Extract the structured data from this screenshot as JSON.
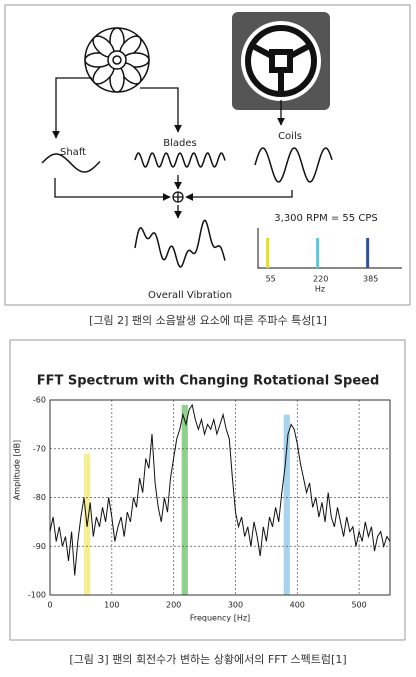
{
  "figure1": {
    "labels": {
      "shaft": "Shaft",
      "blades": "Blades",
      "coils": "Coils",
      "overall": "Overall Vibration",
      "rpm": "3,300 RPM = 55 CPS"
    },
    "spectrum": {
      "ticks": [
        55,
        220,
        385
      ],
      "colors": [
        "#e6df1e",
        "#5cc6de",
        "#2f4f9f"
      ],
      "axis_label": "Hz"
    }
  },
  "caption1": "[그림 2] 팬의 소음발생 요소에 따른 주파수 특성[1]",
  "chart_data": {
    "type": "line",
    "title": "FFT Spectrum with Changing Rotational Speed",
    "x_label": "Frequency [Hz]",
    "y_label": "Amplitude [dB]",
    "x": [
      0,
      5,
      10,
      15,
      20,
      25,
      30,
      35,
      40,
      45,
      50,
      55,
      60,
      65,
      70,
      75,
      80,
      85,
      90,
      95,
      100,
      105,
      110,
      115,
      120,
      125,
      130,
      135,
      140,
      145,
      150,
      155,
      160,
      165,
      170,
      175,
      180,
      185,
      190,
      195,
      200,
      205,
      210,
      215,
      220,
      225,
      230,
      235,
      240,
      245,
      250,
      255,
      260,
      265,
      270,
      275,
      280,
      285,
      290,
      295,
      300,
      305,
      310,
      315,
      320,
      325,
      330,
      335,
      340,
      345,
      350,
      355,
      360,
      365,
      370,
      375,
      380,
      385,
      390,
      395,
      400,
      405,
      410,
      415,
      420,
      425,
      430,
      435,
      440,
      445,
      450,
      455,
      460,
      465,
      470,
      475,
      480,
      485,
      490,
      495,
      500,
      505,
      510,
      515,
      520,
      525,
      530,
      535,
      540,
      545,
      550
    ],
    "series": [
      {
        "color": "#111111",
        "values": [
          -87,
          -84,
          -89,
          -86,
          -90,
          -88,
          -93,
          -87,
          -96,
          -89,
          -84,
          -80,
          -86,
          -81,
          -88,
          -84,
          -86,
          -82,
          -85,
          -80,
          -84,
          -89,
          -86,
          -84,
          -88,
          -83,
          -85,
          -80,
          -82,
          -76,
          -79,
          -72,
          -74,
          -67,
          -77,
          -82,
          -85,
          -80,
          -83,
          -76,
          -72,
          -68,
          -66,
          -63,
          -65,
          -62,
          -61,
          -64,
          -66,
          -64,
          -67,
          -65,
          -66,
          -64,
          -67,
          -65,
          -63,
          -66,
          -68,
          -76,
          -83,
          -86,
          -84,
          -88,
          -86,
          -90,
          -85,
          -88,
          -92,
          -86,
          -89,
          -84,
          -86,
          -82,
          -85,
          -79,
          -74,
          -67,
          -65,
          -66,
          -69,
          -73,
          -76,
          -79,
          -77,
          -82,
          -80,
          -84,
          -81,
          -85,
          -79,
          -84,
          -86,
          -82,
          -85,
          -88,
          -84,
          -87,
          -86,
          -90,
          -87,
          -89,
          -85,
          -88,
          -86,
          -91,
          -88,
          -87,
          -90,
          -88,
          -89
        ]
      }
    ],
    "bands": [
      {
        "from": 55,
        "to": 65,
        "top": -71,
        "color": "#f4ef93"
      },
      {
        "from": 213,
        "to": 223,
        "top": -61,
        "color": "#8ed08c"
      },
      {
        "from": 378,
        "to": 388,
        "top": -63,
        "color": "#a8d3ee"
      }
    ],
    "xlim": [
      0,
      550
    ],
    "ylim": [
      -100,
      -60
    ],
    "xticks": [
      0,
      100,
      200,
      300,
      400,
      500
    ],
    "yticks": [
      -60,
      -70,
      -80,
      -90,
      -100
    ],
    "grid": true
  },
  "caption2": "[그림 3] 팬의 회전수가 변하는 상황에서의 FFT 스펙트럼[1]"
}
